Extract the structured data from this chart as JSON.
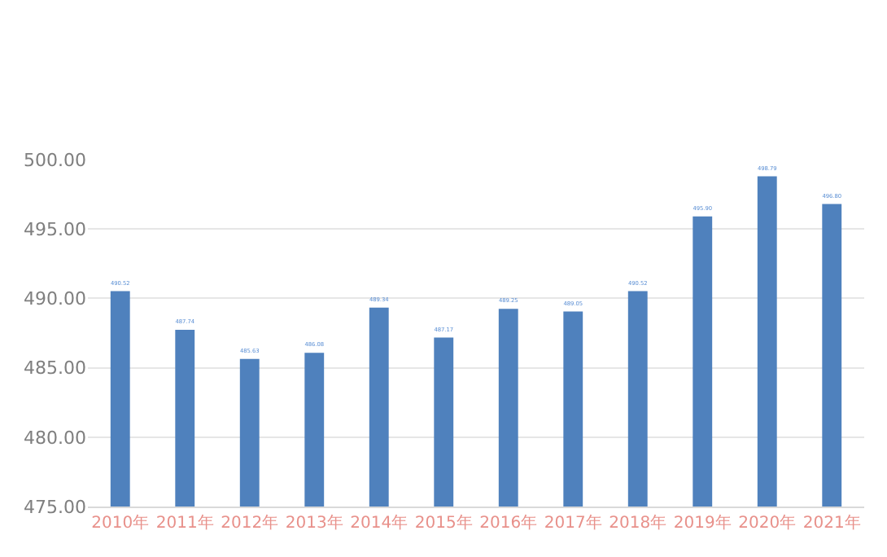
{
  "chart_data": {
    "type": "bar",
    "categories": [
      "2010年",
      "2011年",
      "2012年",
      "2013年",
      "2014年",
      "2015年",
      "2016年",
      "2017年",
      "2018年",
      "2019年",
      "2020年",
      "2021年"
    ],
    "values": [
      490.52,
      487.74,
      485.63,
      486.08,
      489.34,
      487.17,
      489.25,
      489.05,
      490.52,
      495.9,
      498.79,
      496.8
    ],
    "value_labels": [
      "490.52",
      "487.74",
      "485.63",
      "486.08",
      "489.34",
      "487.17",
      "489.25",
      "489.05",
      "490.52",
      "495.90",
      "498.79",
      "496.80"
    ],
    "color": "#4f81bd",
    "ylim": [
      475,
      500
    ],
    "yticks": [
      {
        "value": 475,
        "label": "475.00"
      },
      {
        "value": 480,
        "label": "480.00"
      },
      {
        "value": 485,
        "label": "485.00"
      },
      {
        "value": 490,
        "label": "490.00"
      },
      {
        "value": 495,
        "label": "495.00"
      },
      {
        "value": 500,
        "label": "500.00"
      }
    ],
    "grid": "y"
  }
}
